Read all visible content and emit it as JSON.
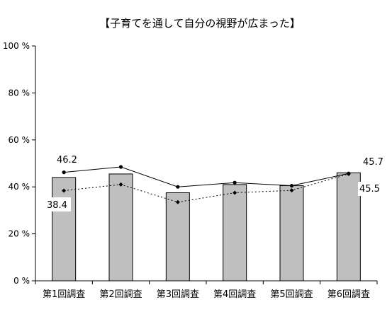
{
  "chart_data": {
    "type": "bar",
    "title": "【子育てを通して自分の視野が広まった】",
    "xlabel": "",
    "ylabel": "",
    "categories": [
      "第1回調査",
      "第2回調査",
      "第3回調査",
      "第4回調査",
      "第5回調査",
      "第6回調査"
    ],
    "ylim": [
      0,
      100
    ],
    "yticks": [
      0,
      20,
      40,
      60,
      80,
      100
    ],
    "ytick_labels": [
      "0 %",
      "20 %",
      "40 %",
      "60 %",
      "80 %",
      "100 %"
    ],
    "grid": false,
    "legend": "none",
    "bars": {
      "values": [
        44.0,
        45.5,
        37.5,
        41.0,
        40.5,
        46.0
      ],
      "color": "#bfbfbf"
    },
    "series": [
      {
        "style": "solid",
        "values": [
          46.2,
          48.5,
          40.0,
          41.8,
          40.5,
          45.7
        ],
        "color": "#000000"
      },
      {
        "style": "dotted",
        "values": [
          38.4,
          41.0,
          33.5,
          37.5,
          38.5,
          45.5
        ],
        "color": "#000000"
      }
    ],
    "data_labels": [
      {
        "text": "46.2"
      },
      {
        "text": "38.4"
      },
      {
        "text": "45.7"
      },
      {
        "text": "45.5"
      }
    ]
  }
}
